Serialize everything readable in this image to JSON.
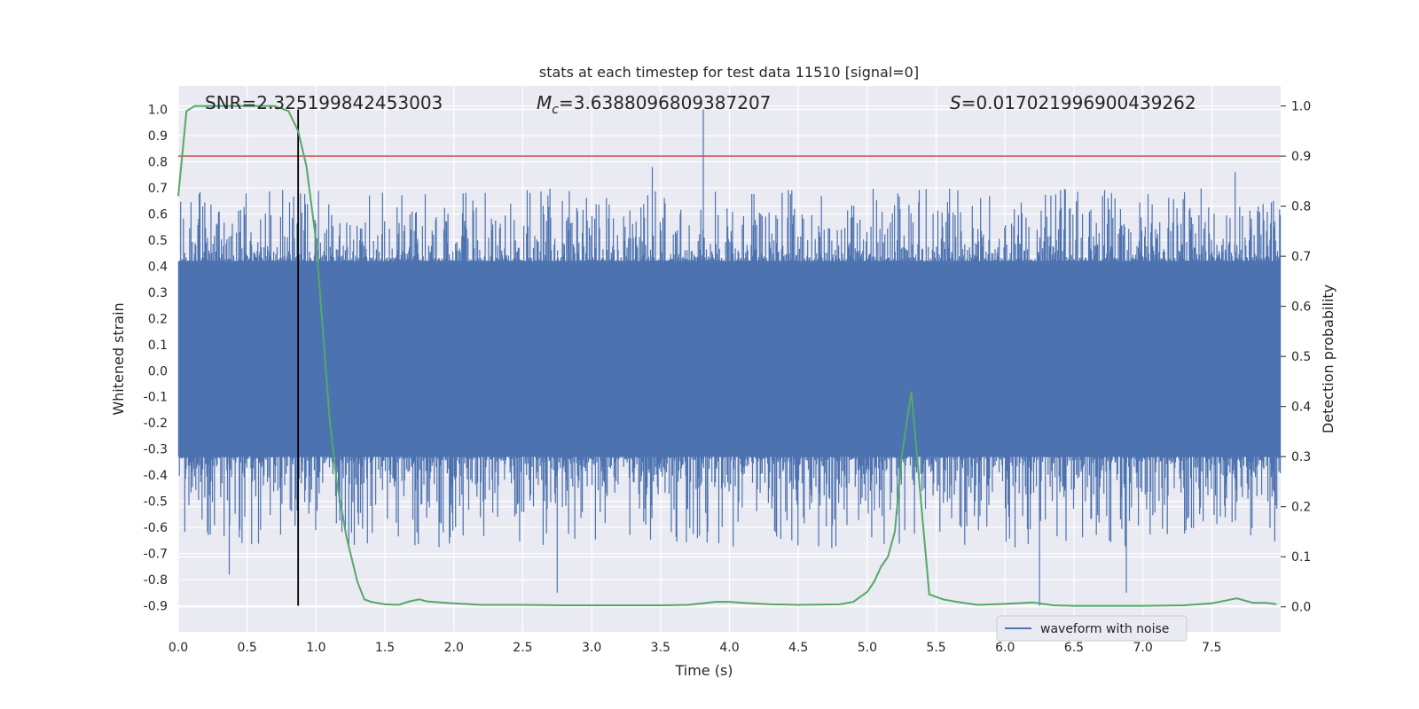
{
  "chart_data": {
    "type": "line",
    "title": "stats at each timestep for test data 11510 [signal=0]",
    "xlabel": "Time (s)",
    "ylabel_left": "Whitened strain",
    "ylabel_right": "Detection probability",
    "xlim": [
      0,
      8.0
    ],
    "ylim_left": [
      -1.0,
      1.09
    ],
    "ylim_right": [
      -0.05,
      1.04
    ],
    "x_ticks": [
      "0.0",
      "0.5",
      "1.0",
      "1.5",
      "2.0",
      "2.5",
      "3.0",
      "3.5",
      "4.0",
      "4.5",
      "5.0",
      "5.5",
      "6.0",
      "6.5",
      "7.0",
      "7.5"
    ],
    "y_ticks_left": [
      "1.0",
      "0.9",
      "0.8",
      "0.7",
      "0.6",
      "0.5",
      "0.4",
      "0.3",
      "0.2",
      "0.1",
      "0.0",
      "-0.1",
      "-0.2",
      "-0.3",
      "-0.4",
      "-0.5",
      "-0.6",
      "-0.7",
      "-0.8",
      "-0.9"
    ],
    "y_ticks_right": [
      "1.0",
      "0.9",
      "0.8",
      "0.7",
      "0.6",
      "0.5",
      "0.4",
      "0.3",
      "0.2",
      "0.1",
      "0.0"
    ],
    "grid": true,
    "legend_position": "bottom-right",
    "annotations": {
      "snr": "SNR=2.325199842453003",
      "mc_sym": "M",
      "mc_sub": "c",
      "mc_val": "=3.6388096809387207",
      "s_sym": "S",
      "s_val": "=0.017021996900439262"
    },
    "threshold_right": 0.9,
    "marker_time": 0.87,
    "series": [
      {
        "name": "waveform with noise",
        "axis": "left",
        "color": "#4c72b0",
        "noise_band": [
          -0.33,
          0.42
        ],
        "notable_peaks": [
          {
            "t": 3.81,
            "v": 1.0
          },
          {
            "t": 3.44,
            "v": 0.78
          },
          {
            "t": 2.75,
            "v": -0.85
          },
          {
            "t": 6.25,
            "v": -0.9
          },
          {
            "t": 6.88,
            "v": -0.85
          },
          {
            "t": 0.37,
            "v": -0.78
          },
          {
            "t": 7.67,
            "v": 0.76
          }
        ]
      },
      {
        "axis": "right",
        "color": "#55a868",
        "x": [
          0.0,
          0.06,
          0.12,
          0.2,
          0.3,
          0.5,
          0.7,
          0.8,
          0.87,
          0.93,
          1.0,
          1.05,
          1.1,
          1.15,
          1.22,
          1.3,
          1.35,
          1.4,
          1.5,
          1.6,
          1.68,
          1.75,
          1.8,
          1.9,
          2.0,
          2.2,
          2.5,
          2.8,
          3.0,
          3.2,
          3.5,
          3.7,
          3.9,
          4.0,
          4.1,
          4.3,
          4.5,
          4.8,
          4.9,
          5.0,
          5.05,
          5.1,
          5.15,
          5.2,
          5.25,
          5.32,
          5.4,
          5.45,
          5.55,
          5.65,
          5.8,
          6.0,
          6.2,
          6.35,
          6.5,
          7.0,
          7.3,
          7.5,
          7.68,
          7.8,
          7.9,
          7.97
        ],
        "y": [
          0.82,
          0.99,
          1.0,
          1.0,
          1.0,
          1.0,
          1.0,
          0.99,
          0.95,
          0.88,
          0.73,
          0.55,
          0.37,
          0.25,
          0.14,
          0.05,
          0.015,
          0.01,
          0.005,
          0.004,
          0.011,
          0.015,
          0.011,
          0.009,
          0.007,
          0.004,
          0.004,
          0.003,
          0.003,
          0.003,
          0.003,
          0.004,
          0.01,
          0.01,
          0.008,
          0.005,
          0.004,
          0.005,
          0.01,
          0.03,
          0.05,
          0.08,
          0.1,
          0.15,
          0.3,
          0.43,
          0.18,
          0.025,
          0.015,
          0.01,
          0.004,
          0.006,
          0.009,
          0.003,
          0.002,
          0.002,
          0.003,
          0.007,
          0.017,
          0.008,
          0.008,
          0.005
        ]
      }
    ]
  }
}
